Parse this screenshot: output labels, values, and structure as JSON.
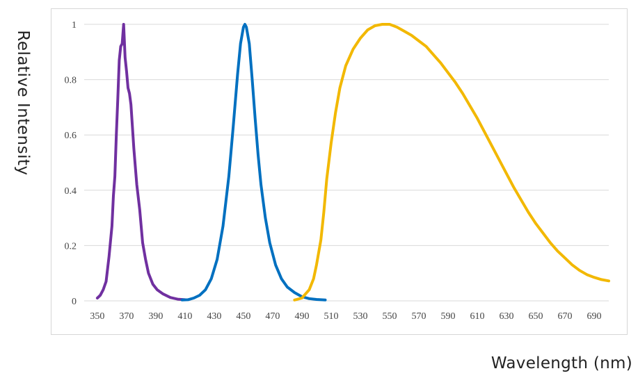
{
  "chart_data": {
    "type": "line",
    "title": "",
    "xlabel": "Wavelength (nm)",
    "ylabel": "Relative Intensity",
    "xlim": [
      341,
      700
    ],
    "ylim": [
      0,
      1
    ],
    "x_ticks": [
      "350",
      "370",
      "390",
      "410",
      "430",
      "450",
      "470",
      "490",
      "510",
      "530",
      "550",
      "570",
      "590",
      "610",
      "630",
      "650",
      "670",
      "690"
    ],
    "y_ticks": [
      "0",
      "0.2",
      "0.4",
      "0.6",
      "0.8",
      "1"
    ],
    "grid": "horizontal",
    "legend": "none",
    "series": [
      {
        "color": "#7030a0",
        "points": [
          [
            350,
            0.01
          ],
          [
            352,
            0.02
          ],
          [
            354,
            0.04
          ],
          [
            356,
            0.07
          ],
          [
            358,
            0.16
          ],
          [
            360,
            0.27
          ],
          [
            361,
            0.38
          ],
          [
            362,
            0.45
          ],
          [
            363,
            0.6
          ],
          [
            364,
            0.73
          ],
          [
            365,
            0.87
          ],
          [
            366,
            0.92
          ],
          [
            367,
            0.93
          ],
          [
            368,
            1.0
          ],
          [
            369,
            0.88
          ],
          [
            370,
            0.83
          ],
          [
            371,
            0.77
          ],
          [
            372,
            0.75
          ],
          [
            373,
            0.71
          ],
          [
            375,
            0.55
          ],
          [
            377,
            0.42
          ],
          [
            379,
            0.33
          ],
          [
            381,
            0.21
          ],
          [
            383,
            0.15
          ],
          [
            385,
            0.1
          ],
          [
            388,
            0.06
          ],
          [
            391,
            0.04
          ],
          [
            395,
            0.025
          ],
          [
            400,
            0.012
          ],
          [
            405,
            0.006
          ],
          [
            410,
            0.004
          ]
        ]
      },
      {
        "color": "#0070c0",
        "points": [
          [
            408,
            0.003
          ],
          [
            412,
            0.004
          ],
          [
            416,
            0.01
          ],
          [
            420,
            0.02
          ],
          [
            424,
            0.04
          ],
          [
            428,
            0.08
          ],
          [
            432,
            0.15
          ],
          [
            436,
            0.27
          ],
          [
            440,
            0.45
          ],
          [
            443,
            0.63
          ],
          [
            446,
            0.82
          ],
          [
            448,
            0.93
          ],
          [
            450,
            0.99
          ],
          [
            451,
            1.0
          ],
          [
            452,
            0.99
          ],
          [
            454,
            0.93
          ],
          [
            456,
            0.8
          ],
          [
            458,
            0.66
          ],
          [
            460,
            0.53
          ],
          [
            462,
            0.42
          ],
          [
            465,
            0.3
          ],
          [
            468,
            0.21
          ],
          [
            472,
            0.13
          ],
          [
            476,
            0.08
          ],
          [
            480,
            0.05
          ],
          [
            485,
            0.03
          ],
          [
            490,
            0.015
          ],
          [
            495,
            0.008
          ],
          [
            500,
            0.005
          ],
          [
            506,
            0.003
          ]
        ]
      },
      {
        "color": "#f2b800",
        "points": [
          [
            485,
            0.003
          ],
          [
            490,
            0.01
          ],
          [
            495,
            0.04
          ],
          [
            498,
            0.08
          ],
          [
            500,
            0.13
          ],
          [
            503,
            0.22
          ],
          [
            505,
            0.32
          ],
          [
            507,
            0.44
          ],
          [
            510,
            0.57
          ],
          [
            513,
            0.68
          ],
          [
            516,
            0.77
          ],
          [
            520,
            0.85
          ],
          [
            525,
            0.91
          ],
          [
            530,
            0.95
          ],
          [
            535,
            0.98
          ],
          [
            540,
            0.995
          ],
          [
            545,
            1.0
          ],
          [
            550,
            1.0
          ],
          [
            555,
            0.99
          ],
          [
            560,
            0.975
          ],
          [
            565,
            0.96
          ],
          [
            570,
            0.94
          ],
          [
            575,
            0.92
          ],
          [
            580,
            0.89
          ],
          [
            585,
            0.86
          ],
          [
            590,
            0.825
          ],
          [
            595,
            0.79
          ],
          [
            600,
            0.75
          ],
          [
            605,
            0.705
          ],
          [
            610,
            0.66
          ],
          [
            615,
            0.61
          ],
          [
            620,
            0.56
          ],
          [
            625,
            0.51
          ],
          [
            630,
            0.46
          ],
          [
            635,
            0.41
          ],
          [
            640,
            0.365
          ],
          [
            645,
            0.32
          ],
          [
            650,
            0.28
          ],
          [
            655,
            0.245
          ],
          [
            660,
            0.21
          ],
          [
            665,
            0.18
          ],
          [
            670,
            0.155
          ],
          [
            675,
            0.13
          ],
          [
            680,
            0.11
          ],
          [
            685,
            0.095
          ],
          [
            690,
            0.085
          ],
          [
            695,
            0.077
          ],
          [
            700,
            0.072
          ]
        ]
      }
    ]
  }
}
